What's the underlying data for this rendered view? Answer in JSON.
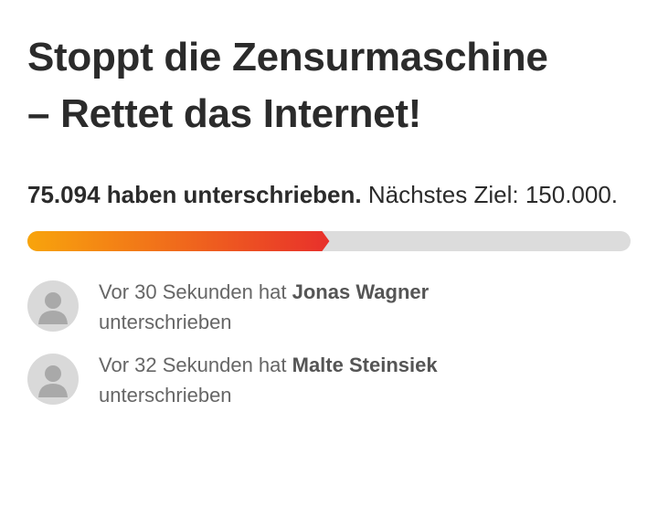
{
  "title": {
    "line1": "Stoppt die Zensurmaschine",
    "line2": "– Rettet das Internet!"
  },
  "progress": {
    "count": {
      "value": 75094,
      "label": "75.094"
    },
    "count_suffix": "haben unterschrieben.",
    "goal_prefix": "Nächstes Ziel:",
    "goal": {
      "value": 150000,
      "label": "150.000"
    },
    "goal_suffix": "."
  },
  "signers": [
    {
      "prefix": "Vor 30 Sekunden hat",
      "name": "Jonas Wagner",
      "suffix": "unterschrieben"
    },
    {
      "prefix": "Vor 32 Sekunden hat",
      "name": "Malte Steinsiek",
      "suffix": "unterschrieben"
    }
  ]
}
